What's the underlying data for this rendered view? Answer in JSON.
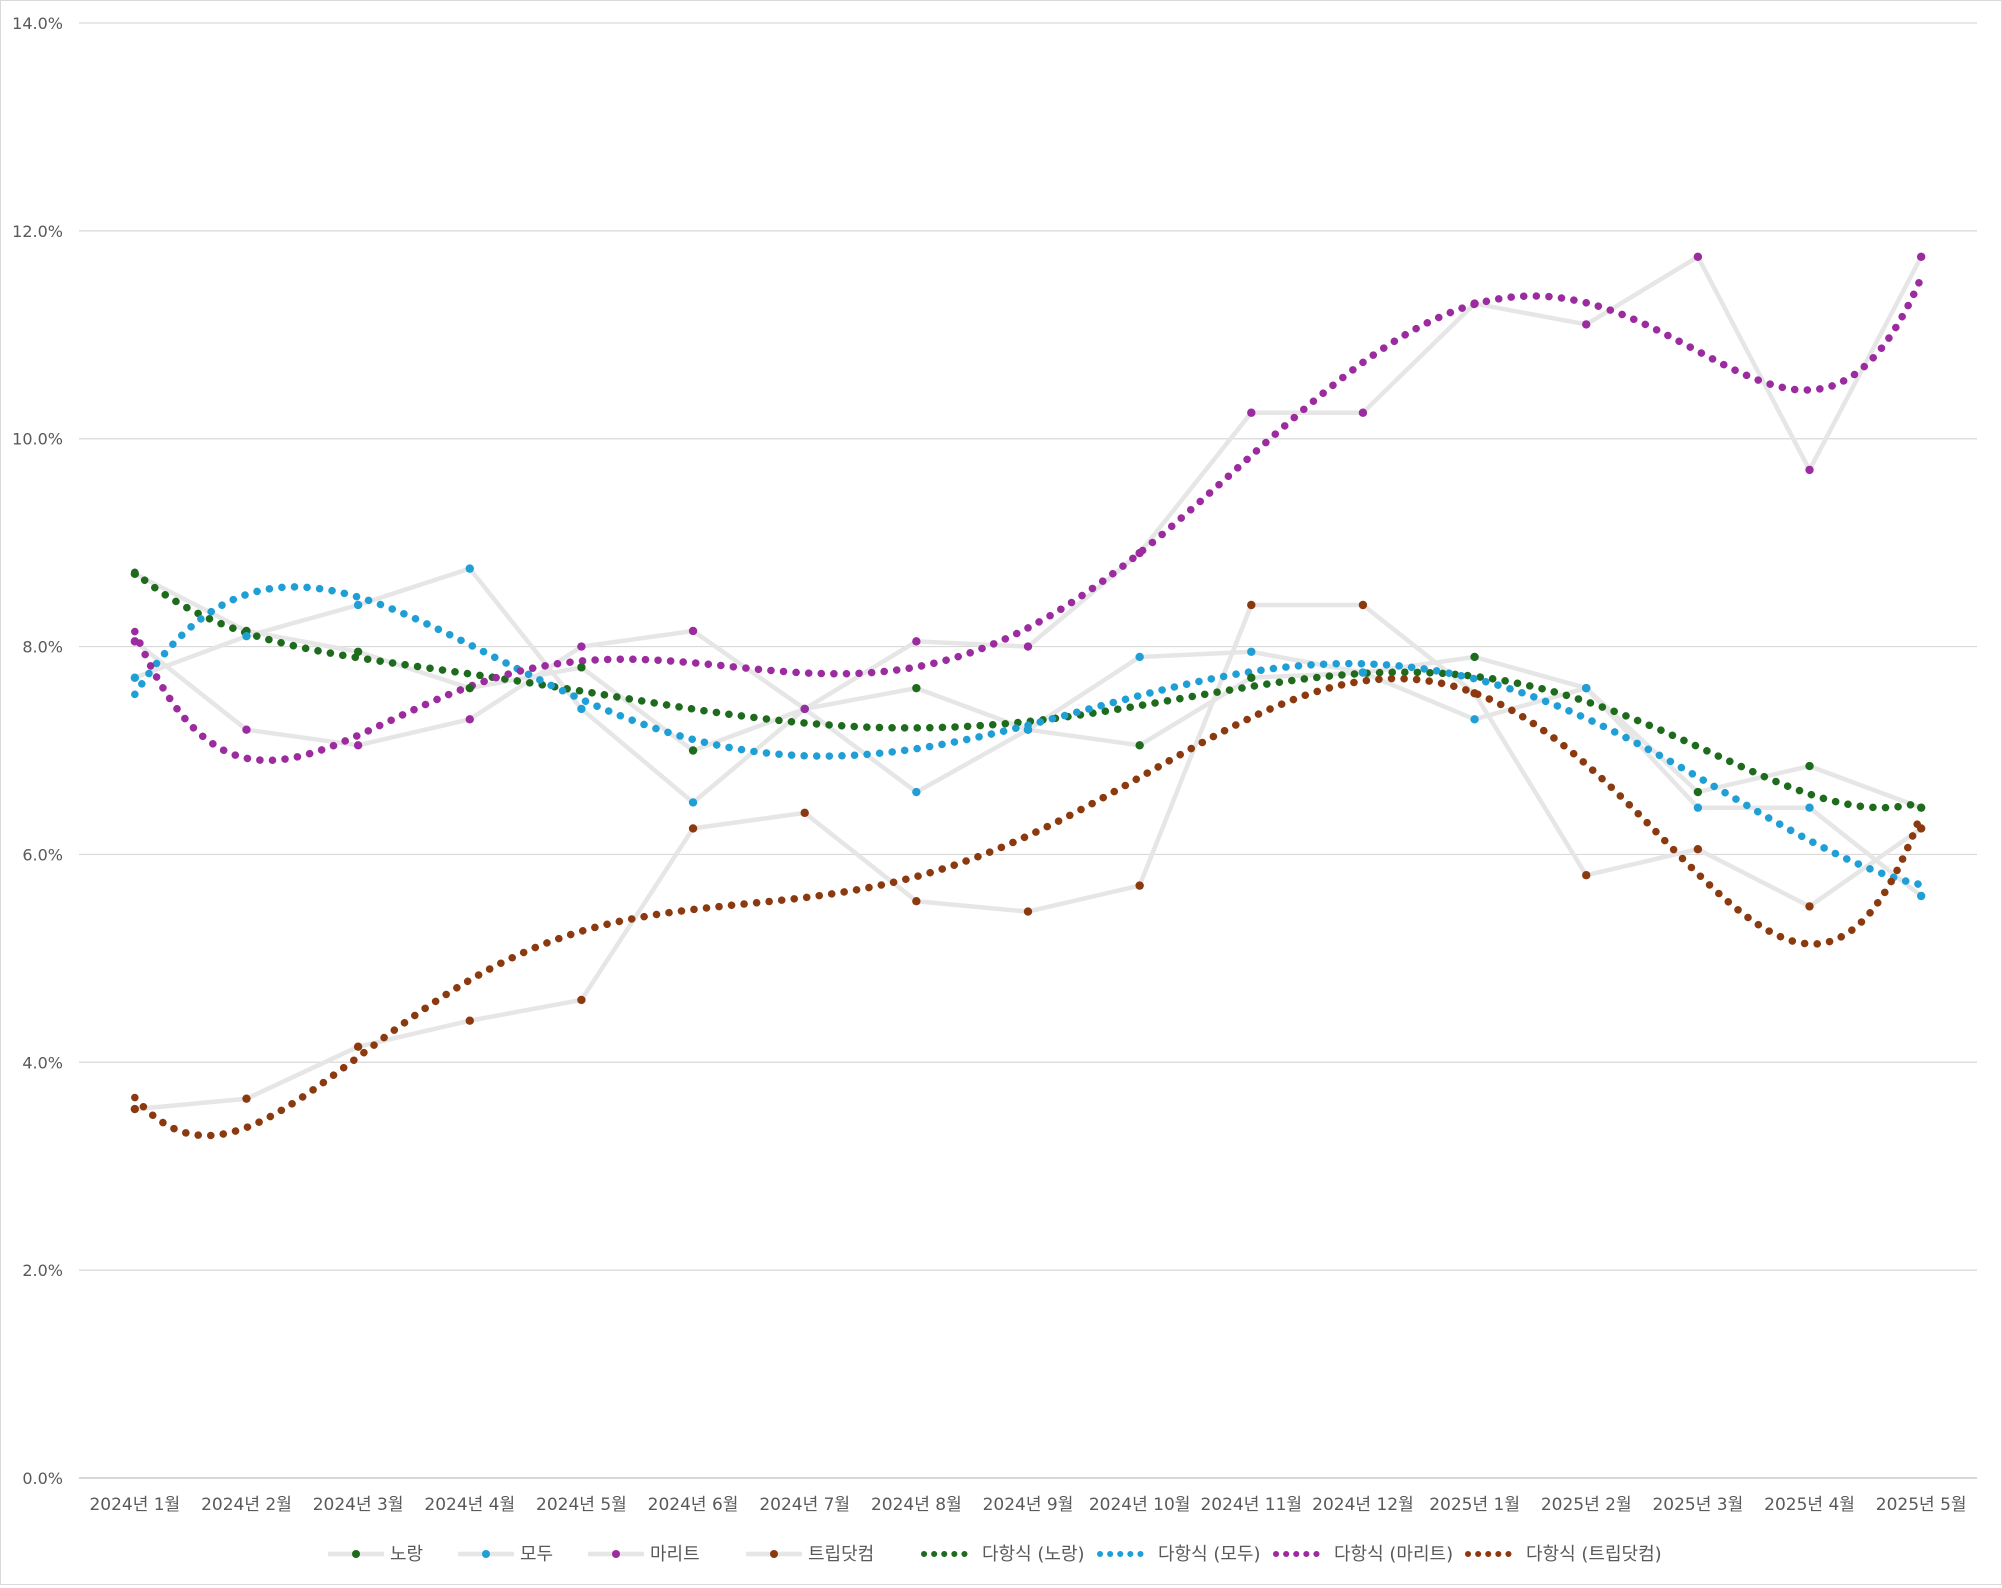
{
  "chart_data": {
    "type": "line",
    "title": "",
    "xlabel": "",
    "ylabel": "",
    "categories": [
      "2024년 1월",
      "2024년 2월",
      "2024년 3월",
      "2024년 4월",
      "2024년 5월",
      "2024년 6월",
      "2024년 7월",
      "2024년 8월",
      "2024년 9월",
      "2024년 10월",
      "2024년 11월",
      "2024년 12월",
      "2025년 1월",
      "2025년 2월",
      "2025년 3월",
      "2025년 4월",
      "2025년 5월"
    ],
    "ylim": [
      0,
      14
    ],
    "yticks": [
      "0.0%",
      "2.0%",
      "4.0%",
      "6.0%",
      "8.0%",
      "10.0%",
      "12.0%",
      "14.0%"
    ],
    "grid": true,
    "legend_position": "bottom",
    "series": [
      {
        "name": "노랑",
        "color": "#1e6b1e",
        "values": [
          8.7,
          8.15,
          7.95,
          7.6,
          7.8,
          7.0,
          7.4,
          7.6,
          7.2,
          7.05,
          7.7,
          7.75,
          7.9,
          7.6,
          6.6,
          6.85,
          6.45
        ]
      },
      {
        "name": "모두",
        "color": "#1f9fd6",
        "values": [
          7.7,
          8.1,
          8.4,
          8.75,
          7.4,
          6.5,
          7.4,
          6.6,
          7.2,
          7.9,
          7.95,
          7.75,
          7.3,
          7.6,
          6.45,
          6.45,
          5.6
        ]
      },
      {
        "name": "마리트",
        "color": "#9b2b9e",
        "values": [
          8.05,
          7.2,
          7.05,
          7.3,
          8.0,
          8.15,
          7.4,
          8.05,
          8.0,
          8.9,
          10.25,
          10.25,
          11.3,
          11.1,
          11.75,
          9.7,
          11.75
        ]
      },
      {
        "name": "트립닷컴",
        "color": "#8b3a10",
        "values": [
          3.55,
          3.65,
          4.15,
          4.4,
          4.6,
          6.25,
          6.4,
          5.55,
          5.45,
          5.7,
          8.4,
          8.4,
          7.55,
          5.8,
          6.05,
          5.5,
          6.25
        ]
      },
      {
        "name": "다항식 (노랑)"
      },
      {
        "name": "다항식 (모두)"
      },
      {
        "name": "다항식 (마리트)"
      },
      {
        "name": "다항식 (트립닷컴)"
      }
    ]
  }
}
